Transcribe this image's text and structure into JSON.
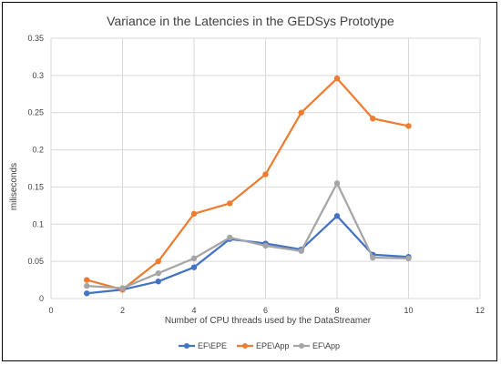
{
  "chart_data": {
    "type": "line",
    "title": "Variance in the Latencies in the GEDSys Prototype",
    "xlabel": "Number of CPU threads  used by the DataStreamer",
    "ylabel": "miliseconds",
    "xlim": [
      0,
      12
    ],
    "ylim": [
      0,
      0.35
    ],
    "x_ticks": [
      "0",
      "2",
      "4",
      "6",
      "8",
      "10",
      "12"
    ],
    "y_ticks": [
      "0",
      "0.05",
      "0.1",
      "0.15",
      "0.2",
      "0.25",
      "0.3",
      "0.35"
    ],
    "grid": true,
    "legend_position": "bottom",
    "x": [
      1,
      2,
      3,
      4,
      5,
      6,
      7,
      8,
      9,
      10
    ],
    "series": [
      {
        "name": "EF\\EPE",
        "color": "#4472C4",
        "values": [
          0.007,
          0.012,
          0.023,
          0.042,
          0.08,
          0.074,
          0.066,
          0.111,
          0.059,
          0.056
        ]
      },
      {
        "name": "EPE\\App",
        "color": "#ED7D31",
        "values": [
          0.025,
          0.012,
          0.05,
          0.114,
          0.128,
          0.167,
          0.25,
          0.296,
          0.242,
          0.232
        ]
      },
      {
        "name": "EF\\App",
        "color": "#A5A5A5",
        "values": [
          0.017,
          0.014,
          0.034,
          0.054,
          0.082,
          0.071,
          0.064,
          0.155,
          0.055,
          0.054
        ]
      }
    ]
  }
}
